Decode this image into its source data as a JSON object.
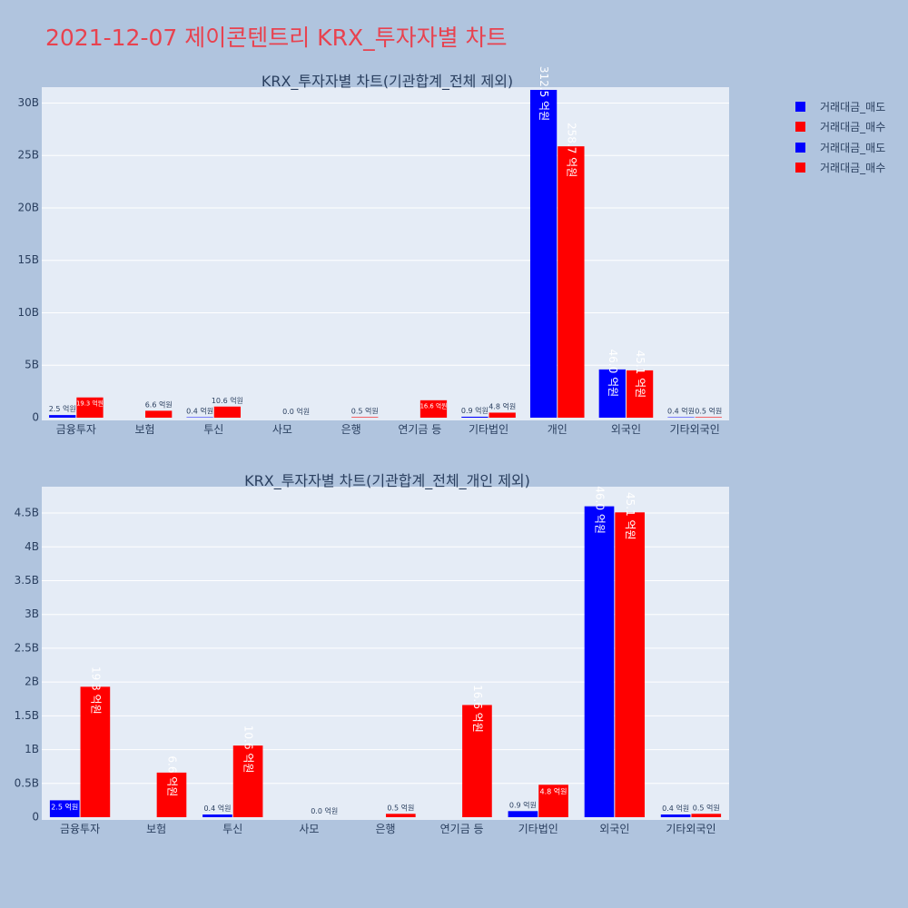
{
  "title": "2021-12-07 제이콘텐트리 KRX_투자자별 차트",
  "colors": {
    "sell": "#0000ff",
    "buy": "#ff0000",
    "title": "#e8424f"
  },
  "legend": [
    {
      "label": "거래대금_매도",
      "color": "#0000ff"
    },
    {
      "label": "거래대금_매수",
      "color": "#ff0000"
    },
    {
      "label": "거래대금_매도",
      "color": "#0000ff"
    },
    {
      "label": "거래대금_매수",
      "color": "#ff0000"
    }
  ],
  "chart_data": [
    {
      "type": "bar",
      "title": "KRX_투자자별 차트(기관합계_전체 제외)",
      "categories": [
        "금융투자",
        "보험",
        "투신",
        "사모",
        "은행",
        "연기금 등",
        "기타법인",
        "개인",
        "외국인",
        "기타외국인"
      ],
      "ylim": [
        0,
        31250000000
      ],
      "yticks": [
        0,
        5000000000,
        10000000000,
        15000000000,
        20000000000,
        25000000000,
        30000000000
      ],
      "ytick_labels": [
        "0",
        "5B",
        "10B",
        "15B",
        "20B",
        "25B",
        "30B"
      ],
      "grid": true,
      "legend_position": "top-right",
      "series": [
        {
          "name": "거래대금_매도",
          "color": "#0000ff",
          "values": [
            250000000,
            0,
            40000000,
            0,
            0,
            0,
            90000000,
            31250000000,
            4600000000,
            40000000
          ],
          "labels": [
            "2.5 억원",
            "",
            "0.4 억원",
            "",
            "",
            "",
            "0.9 억원",
            "312.5 억원",
            "46.0 억원",
            "0.4 억원"
          ]
        },
        {
          "name": "거래대금_매수",
          "color": "#ff0000",
          "values": [
            1930000000,
            660000000,
            1060000000,
            0,
            50000000,
            1660000000,
            480000000,
            25870000000,
            4510000000,
            50000000
          ],
          "labels": [
            "19.3 억원",
            "6.6 억원",
            "10.6 억원",
            "0.0 억원",
            "0.5 억원",
            "16.6 억원",
            "4.8 억원",
            "258.7 억원",
            "45.1 억원",
            "0.5 억원"
          ]
        }
      ]
    },
    {
      "type": "bar",
      "title": "KRX_투자자별 차트(기관합계_전체_개인 제외)",
      "categories": [
        "금융투자",
        "보험",
        "투신",
        "사모",
        "은행",
        "연기금 등",
        "기타법인",
        "외국인",
        "기타외국인"
      ],
      "ylim": [
        0,
        4850000000
      ],
      "yticks": [
        0,
        500000000,
        1000000000,
        1500000000,
        2000000000,
        2500000000,
        3000000000,
        3500000000,
        4000000000,
        4500000000
      ],
      "ytick_labels": [
        "0",
        "0.5B",
        "1B",
        "1.5B",
        "2B",
        "2.5B",
        "3B",
        "3.5B",
        "4B",
        "4.5B"
      ],
      "grid": true,
      "series": [
        {
          "name": "거래대금_매도",
          "color": "#0000ff",
          "values": [
            250000000,
            0,
            40000000,
            0,
            0,
            0,
            90000000,
            4600000000,
            40000000
          ],
          "labels": [
            "2.5 억원",
            "",
            "0.4 억원",
            "",
            "",
            "",
            "0.9 억원",
            "46.0 억원",
            "0.4 억원"
          ]
        },
        {
          "name": "거래대금_매수",
          "color": "#ff0000",
          "values": [
            1930000000,
            660000000,
            1060000000,
            0,
            50000000,
            1660000000,
            480000000,
            4510000000,
            50000000
          ],
          "labels": [
            "19.3 억원",
            "6.6 억원",
            "10.6 억원",
            "0.0 억원",
            "0.5 억원",
            "16.6 억원",
            "4.8 억원",
            "45.1 억원",
            "0.5 억원"
          ]
        }
      ]
    }
  ]
}
